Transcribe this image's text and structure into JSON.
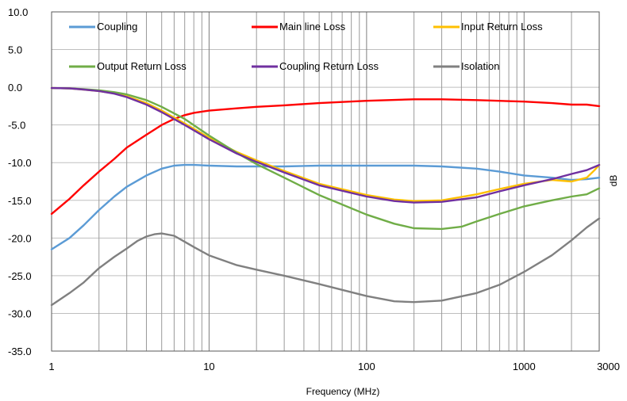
{
  "chart_data": {
    "type": "line",
    "xlabel": "Frequency (MHz)",
    "ylabel": "dB",
    "x_scale": "log",
    "xlim": [
      1,
      3000
    ],
    "ylim": [
      -35,
      10
    ],
    "x_ticks": [
      {
        "value": 1,
        "label": "1"
      },
      {
        "value": 10,
        "label": "10"
      },
      {
        "value": 100,
        "label": "100"
      },
      {
        "value": 1000,
        "label": "1000"
      },
      {
        "value": 3000,
        "label": "3000"
      }
    ],
    "y_ticks": [
      {
        "value": 10,
        "label": "10.0"
      },
      {
        "value": 5,
        "label": "5.0"
      },
      {
        "value": 0,
        "label": "0.0"
      },
      {
        "value": -5,
        "label": "-5.0"
      },
      {
        "value": -10,
        "label": "-10.0"
      },
      {
        "value": -15,
        "label": "-15.0"
      },
      {
        "value": -20,
        "label": "-20.0"
      },
      {
        "value": -25,
        "label": "-25.0"
      },
      {
        "value": -30,
        "label": "-30.0"
      },
      {
        "value": -35,
        "label": "-35.0"
      }
    ],
    "grid": {
      "vertical_minor": true,
      "horizontal": true
    },
    "legend_placement": "top-inside",
    "series": [
      {
        "name": "Coupling",
        "color": "#5B9BD5",
        "points": [
          [
            1,
            -21.5
          ],
          [
            1.3,
            -20
          ],
          [
            1.6,
            -18.3
          ],
          [
            2,
            -16.3
          ],
          [
            2.5,
            -14.5
          ],
          [
            3,
            -13.2
          ],
          [
            4,
            -11.7
          ],
          [
            5,
            -10.8
          ],
          [
            6,
            -10.4
          ],
          [
            7,
            -10.3
          ],
          [
            8,
            -10.3
          ],
          [
            10,
            -10.4
          ],
          [
            15,
            -10.5
          ],
          [
            20,
            -10.5
          ],
          [
            30,
            -10.5
          ],
          [
            50,
            -10.4
          ],
          [
            100,
            -10.4
          ],
          [
            200,
            -10.4
          ],
          [
            300,
            -10.5
          ],
          [
            500,
            -10.8
          ],
          [
            700,
            -11.2
          ],
          [
            1000,
            -11.7
          ],
          [
            1500,
            -12
          ],
          [
            2000,
            -12.3
          ],
          [
            2500,
            -12.2
          ],
          [
            3000,
            -12
          ]
        ]
      },
      {
        "name": "Main line Loss",
        "color": "#FF0000",
        "points": [
          [
            1,
            -16.8
          ],
          [
            1.3,
            -14.8
          ],
          [
            1.6,
            -13
          ],
          [
            2,
            -11.2
          ],
          [
            2.5,
            -9.5
          ],
          [
            3,
            -8
          ],
          [
            4,
            -6.3
          ],
          [
            5,
            -5
          ],
          [
            6,
            -4.2
          ],
          [
            7,
            -3.7
          ],
          [
            8,
            -3.4
          ],
          [
            10,
            -3.1
          ],
          [
            15,
            -2.8
          ],
          [
            20,
            -2.6
          ],
          [
            30,
            -2.4
          ],
          [
            50,
            -2.1
          ],
          [
            100,
            -1.8
          ],
          [
            200,
            -1.6
          ],
          [
            300,
            -1.6
          ],
          [
            500,
            -1.7
          ],
          [
            1000,
            -1.9
          ],
          [
            1500,
            -2.1
          ],
          [
            2000,
            -2.3
          ],
          [
            2500,
            -2.3
          ],
          [
            3000,
            -2.5
          ]
        ]
      },
      {
        "name": "Input Return Loss",
        "color": "#FFC000",
        "points": [
          [
            1,
            -0.1
          ],
          [
            1.3,
            -0.15
          ],
          [
            1.6,
            -0.3
          ],
          [
            2,
            -0.5
          ],
          [
            2.5,
            -0.8
          ],
          [
            3,
            -1.2
          ],
          [
            4,
            -2.1
          ],
          [
            5,
            -3.1
          ],
          [
            7,
            -4.8
          ],
          [
            10,
            -6.7
          ],
          [
            15,
            -8.6
          ],
          [
            20,
            -9.7
          ],
          [
            30,
            -11.1
          ],
          [
            50,
            -12.8
          ],
          [
            100,
            -14.3
          ],
          [
            150,
            -14.9
          ],
          [
            200,
            -15.1
          ],
          [
            300,
            -15
          ],
          [
            500,
            -14.2
          ],
          [
            700,
            -13.5
          ],
          [
            1000,
            -12.8
          ],
          [
            1500,
            -12.3
          ],
          [
            2000,
            -12.5
          ],
          [
            2500,
            -12
          ],
          [
            2800,
            -11
          ],
          [
            3000,
            -10.3
          ]
        ]
      },
      {
        "name": "Output Return Loss",
        "color": "#70AD47",
        "points": [
          [
            1,
            -0.1
          ],
          [
            1.3,
            -0.15
          ],
          [
            1.6,
            -0.25
          ],
          [
            2,
            -0.4
          ],
          [
            2.5,
            -0.65
          ],
          [
            3,
            -0.95
          ],
          [
            4,
            -1.7
          ],
          [
            5,
            -2.6
          ],
          [
            7,
            -4.2
          ],
          [
            10,
            -6.4
          ],
          [
            15,
            -8.7
          ],
          [
            20,
            -10.2
          ],
          [
            30,
            -12
          ],
          [
            50,
            -14.3
          ],
          [
            100,
            -16.9
          ],
          [
            150,
            -18.1
          ],
          [
            200,
            -18.7
          ],
          [
            300,
            -18.8
          ],
          [
            400,
            -18.5
          ],
          [
            500,
            -17.8
          ],
          [
            700,
            -16.8
          ],
          [
            1000,
            -15.8
          ],
          [
            1500,
            -15
          ],
          [
            2000,
            -14.5
          ],
          [
            2500,
            -14.2
          ],
          [
            3000,
            -13.4
          ]
        ]
      },
      {
        "name": "Coupling Return Loss",
        "color": "#7030A0",
        "points": [
          [
            1,
            -0.1
          ],
          [
            1.3,
            -0.15
          ],
          [
            1.6,
            -0.3
          ],
          [
            2,
            -0.5
          ],
          [
            2.5,
            -0.85
          ],
          [
            3,
            -1.3
          ],
          [
            4,
            -2.3
          ],
          [
            5,
            -3.3
          ],
          [
            7,
            -5
          ],
          [
            10,
            -6.9
          ],
          [
            15,
            -8.8
          ],
          [
            20,
            -9.9
          ],
          [
            30,
            -11.3
          ],
          [
            50,
            -13
          ],
          [
            100,
            -14.5
          ],
          [
            150,
            -15.1
          ],
          [
            200,
            -15.3
          ],
          [
            300,
            -15.2
          ],
          [
            500,
            -14.6
          ],
          [
            700,
            -13.8
          ],
          [
            1000,
            -13
          ],
          [
            1500,
            -12.2
          ],
          [
            2000,
            -11.5
          ],
          [
            2500,
            -11
          ],
          [
            3000,
            -10.3
          ]
        ]
      },
      {
        "name": "Isolation",
        "color": "#808080",
        "points": [
          [
            1,
            -28.9
          ],
          [
            1.3,
            -27.3
          ],
          [
            1.6,
            -25.9
          ],
          [
            2,
            -24
          ],
          [
            2.5,
            -22.5
          ],
          [
            3,
            -21.4
          ],
          [
            3.5,
            -20.4
          ],
          [
            4,
            -19.8
          ],
          [
            4.5,
            -19.5
          ],
          [
            5,
            -19.4
          ],
          [
            6,
            -19.7
          ],
          [
            7,
            -20.5
          ],
          [
            8,
            -21.2
          ],
          [
            10,
            -22.3
          ],
          [
            15,
            -23.6
          ],
          [
            20,
            -24.2
          ],
          [
            30,
            -25
          ],
          [
            50,
            -26.1
          ],
          [
            100,
            -27.7
          ],
          [
            150,
            -28.4
          ],
          [
            200,
            -28.5
          ],
          [
            300,
            -28.3
          ],
          [
            500,
            -27.3
          ],
          [
            700,
            -26.2
          ],
          [
            1000,
            -24.5
          ],
          [
            1500,
            -22.3
          ],
          [
            2000,
            -20.3
          ],
          [
            2500,
            -18.6
          ],
          [
            3000,
            -17.4
          ]
        ]
      }
    ]
  }
}
